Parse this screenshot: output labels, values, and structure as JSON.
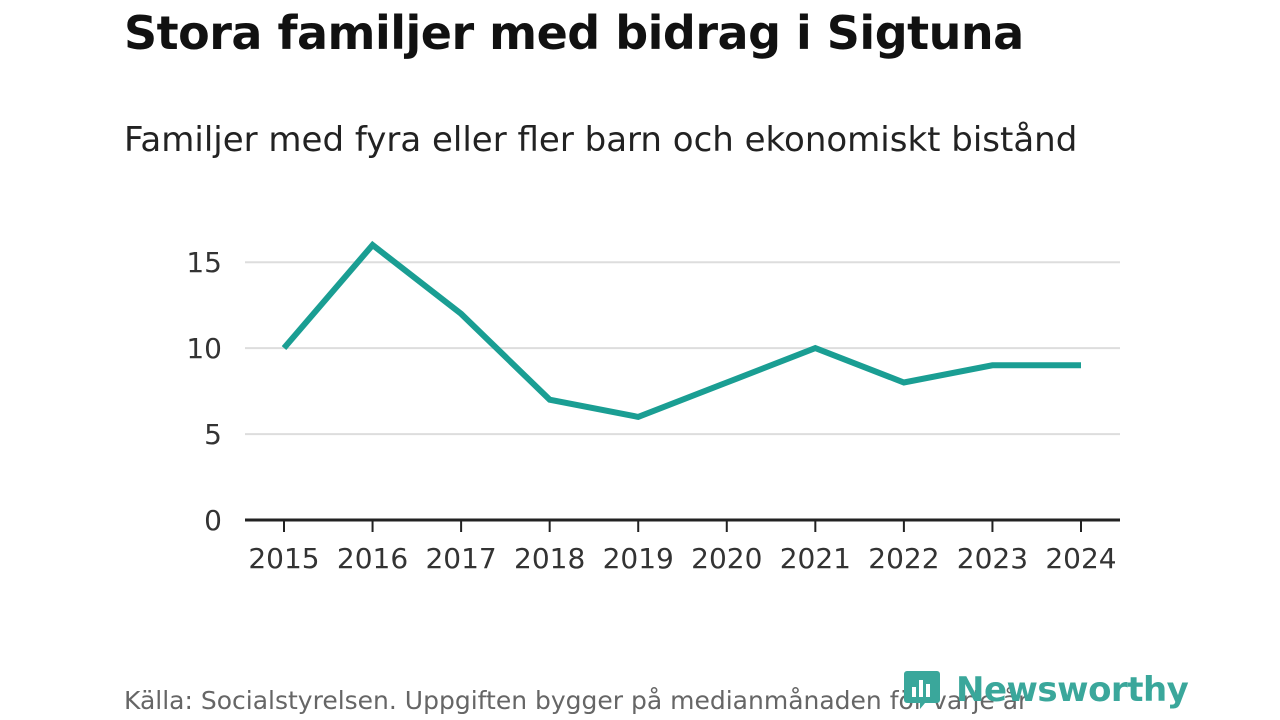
{
  "title": "Stora familjer med bidrag i Sigtuna",
  "subtitle": "Familjer med fyra eller fler barn och ekonomiskt bistånd",
  "source": "Källa: Socialstyrelsen. Uppgiften bygger på medianmånaden för varje år",
  "brand": {
    "name": "Newsworthy",
    "icon": "newsworthy-logo-icon",
    "color": "#3aa79b"
  },
  "colors": {
    "line": "#1a9e93",
    "grid": "#dddddd",
    "axis": "#222222"
  },
  "chart_data": {
    "type": "line",
    "title": "Stora familjer med bidrag i Sigtuna",
    "subtitle": "Familjer med fyra eller fler barn och ekonomiskt bistånd",
    "xlabel": "",
    "ylabel": "",
    "categories": [
      "2015",
      "2016",
      "2017",
      "2018",
      "2019",
      "2020",
      "2021",
      "2022",
      "2023",
      "2024"
    ],
    "series": [
      {
        "name": "Familjer med fyra eller fler barn och ekonomiskt bistånd",
        "values": [
          10,
          16,
          12,
          7,
          6,
          8,
          10,
          8,
          9,
          9
        ]
      }
    ],
    "ylim": [
      0,
      16
    ],
    "yticks": [
      0,
      5,
      10,
      15
    ],
    "grid": true,
    "legend": "none"
  }
}
